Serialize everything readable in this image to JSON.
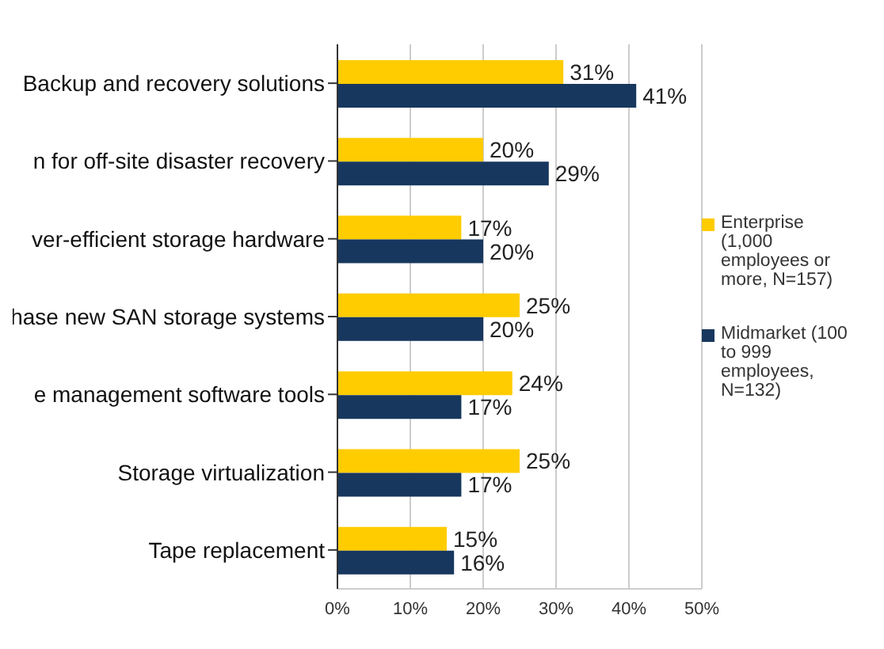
{
  "chart_data": {
    "type": "bar",
    "orientation": "horizontal",
    "categories": [
      "Backup and recovery solutions",
      "n for off-site disaster recovery",
      "ver-efficient storage hardware",
      "hase new SAN storage systems",
      "e management software tools",
      "Storage virtualization",
      "Tape replacement"
    ],
    "series": [
      {
        "name": "Enterprise (1,000 employees or more, N=157)",
        "color": "#ffcc00",
        "values": [
          31,
          20,
          17,
          25,
          24,
          25,
          15
        ],
        "value_labels": [
          "31%",
          "20%",
          "17%",
          "25%",
          "24%",
          "25%",
          "15%"
        ]
      },
      {
        "name": "Midmarket (100 to 999 employees, N=132)",
        "color": "#17375e",
        "values": [
          41,
          29,
          20,
          20,
          17,
          17,
          16
        ],
        "value_labels": [
          "41%",
          "29%",
          "20%",
          "20%",
          "17%",
          "17%",
          "16%"
        ]
      }
    ],
    "xlim": [
      0,
      50
    ],
    "xticks": [
      {
        "value": 0,
        "label": "0%"
      },
      {
        "value": 10,
        "label": "10%"
      },
      {
        "value": 20,
        "label": "20%"
      },
      {
        "value": 30,
        "label": "30%"
      },
      {
        "value": 40,
        "label": "40%"
      },
      {
        "value": 50,
        "label": "50%"
      }
    ],
    "grid": "x",
    "legend": "right"
  }
}
